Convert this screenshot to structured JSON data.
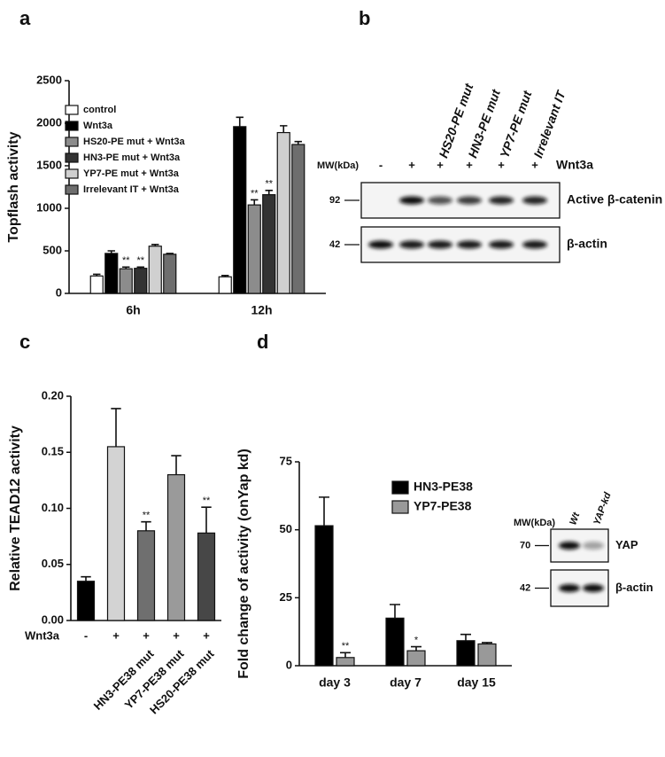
{
  "chart_data": [
    {
      "type": "bar",
      "panel": "a",
      "y_label": "Topflash activity",
      "categories": [
        "6h",
        "12h"
      ],
      "ylim": [
        0,
        2500
      ],
      "yticks": [
        0,
        500,
        1000,
        1500,
        2000,
        2500
      ],
      "series": [
        {
          "name": "control",
          "color": "#ffffff",
          "values": [
            205,
            195
          ],
          "errors": [
            20,
            15
          ]
        },
        {
          "name": "Wnt3a",
          "color": "#000000",
          "values": [
            470,
            1960
          ],
          "errors": [
            30,
            110
          ]
        },
        {
          "name": "HS20-PE mut + Wnt3a",
          "color": "#8c8c8c",
          "values": [
            290,
            1040
          ],
          "errors": [
            20,
            60
          ],
          "significance": [
            "**",
            "**"
          ]
        },
        {
          "name": "HN3-PE mut + Wnt3a",
          "color": "#333333",
          "values": [
            295,
            1160
          ],
          "errors": [
            15,
            50
          ],
          "significance": [
            "**",
            "**"
          ]
        },
        {
          "name": "YP7-PE mut + Wnt3a",
          "color": "#d0d0d0",
          "values": [
            555,
            1890
          ],
          "errors": [
            20,
            80
          ]
        },
        {
          "name": "Irrelevant IT + Wnt3a",
          "color": "#6e6e6e",
          "values": [
            460,
            1750
          ],
          "errors": [
            10,
            35
          ]
        }
      ]
    },
    {
      "type": "bar",
      "panel": "c",
      "y_label": "Relative TEAD12 activity",
      "categories": [
        null,
        null,
        "HN3-PE38 mut",
        "YP7-PE38 mut",
        "HS20-PE38 mut"
      ],
      "values": [
        0.035,
        0.155,
        0.08,
        0.13,
        0.078
      ],
      "errors": [
        0.004,
        0.034,
        0.008,
        0.017,
        0.023
      ],
      "colors": [
        "#000000",
        "#d3d3d3",
        "#6f6f6f",
        "#9a9a9a",
        "#474747"
      ],
      "significance": [
        null,
        null,
        "**",
        null,
        "**"
      ],
      "treatment_label": "Wnt3a",
      "treatment": [
        "-",
        "+",
        "+",
        "+",
        "+"
      ],
      "ylim": [
        0,
        0.2
      ],
      "yticks": [
        {
          "value": 0,
          "label": "0.00"
        },
        {
          "value": 0.05,
          "label": "0.05"
        },
        {
          "value": 0.1,
          "label": "0.10"
        },
        {
          "value": 0.15,
          "label": "0.15"
        },
        {
          "value": 0.2,
          "label": "0.20"
        }
      ]
    },
    {
      "type": "bar",
      "panel": "d",
      "y_label": "Fold change of activity (onYap kd)",
      "categories": [
        "day 3",
        "day 7",
        "day 15"
      ],
      "ylim": [
        0,
        75
      ],
      "yticks": [
        0,
        25,
        50,
        75
      ],
      "series": [
        {
          "name": "HN3-PE38",
          "color": "#000000",
          "values": [
            51.5,
            17.5,
            9.2
          ],
          "errors": [
            10.5,
            5,
            2.3
          ]
        },
        {
          "name": "YP7-PE38",
          "color": "#999999",
          "values": [
            3,
            5.5,
            8
          ],
          "errors": [
            1.8,
            1.5,
            0.5
          ],
          "significance": [
            "**",
            "*",
            null
          ]
        }
      ]
    }
  ],
  "blots": [
    {
      "panel": "b",
      "mw_label": "MW(kDa)",
      "treatment": "Wnt3a",
      "lanes": [
        {
          "symbol": "-"
        },
        {
          "symbol": "+"
        },
        {
          "symbol": "+",
          "name": "HS20-PE mut"
        },
        {
          "symbol": "+",
          "name": "HN3-PE mut"
        },
        {
          "symbol": "+",
          "name": "YP7-PE mut"
        },
        {
          "symbol": "+",
          "name": "Irrelevant IT"
        }
      ],
      "rows": [
        {
          "marker": "92",
          "label": "Active β-catenin"
        },
        {
          "marker": "42",
          "label": "β-actin"
        }
      ]
    },
    {
      "mw_label": "MW(kDa)",
      "lanes": [
        {
          "name": "Wt"
        },
        {
          "name": "YAP-kd"
        }
      ],
      "rows": [
        {
          "marker": "70",
          "label": "YAP"
        },
        {
          "marker": "42",
          "label": "β-actin"
        }
      ]
    }
  ]
}
